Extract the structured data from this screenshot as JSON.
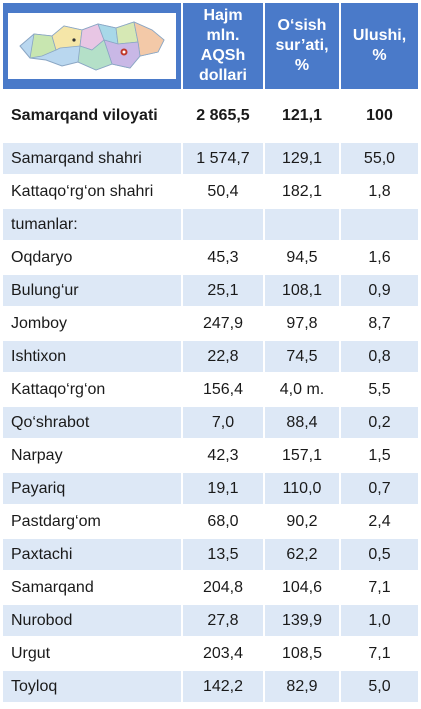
{
  "header": {
    "col_volume": "Hajm mln. AQSh dollari",
    "col_growth": "O‘sish sur’ati, %",
    "col_share": "Ulushi, %",
    "map_icon": "region-map-icon"
  },
  "rows": [
    {
      "name": "Samarqand viloyati",
      "volume": "2 865,5",
      "growth": "121,1",
      "share": "100"
    },
    {
      "name": "Samarqand  shahri",
      "volume": "1 574,7",
      "growth": "129,1",
      "share": "55,0"
    },
    {
      "name": "Kattaqo‘rg‘on shahri",
      "volume": "50,4",
      "growth": "182,1",
      "share": "1,8"
    },
    {
      "name": "tumanlar:",
      "volume": "",
      "growth": "",
      "share": ""
    },
    {
      "name": "Oqdaryo",
      "volume": "45,3",
      "growth": "94,5",
      "share": "1,6"
    },
    {
      "name": "Bulung‘ur",
      "volume": "25,1",
      "growth": "108,1",
      "share": "0,9"
    },
    {
      "name": "Jomboy",
      "volume": "247,9",
      "growth": "97,8",
      "share": "8,7"
    },
    {
      "name": "Ishtixon",
      "volume": "22,8",
      "growth": "74,5",
      "share": "0,8"
    },
    {
      "name": "Kattaqo‘rg‘on",
      "volume": "156,4",
      "growth": "4,0 m.",
      "share": "5,5"
    },
    {
      "name": "Qo‘shrabot",
      "volume": "7,0",
      "growth": "88,4",
      "share": "0,2"
    },
    {
      "name": "Narpay",
      "volume": "42,3",
      "growth": "157,1",
      "share": "1,5"
    },
    {
      "name": "Payariq",
      "volume": "19,1",
      "growth": "110,0",
      "share": "0,7"
    },
    {
      "name": "Pastdarg‘om",
      "volume": "68,0",
      "growth": "90,2",
      "share": "2,4"
    },
    {
      "name": "Paxtachi",
      "volume": "13,5",
      "growth": "62,2",
      "share": "0,5"
    },
    {
      "name": "Samarqand",
      "volume": "204,8",
      "growth": "104,6",
      "share": "7,1"
    },
    {
      "name": "Nurobod",
      "volume": "27,8",
      "growth": "139,9",
      "share": "1,0"
    },
    {
      "name": "Urgut",
      "volume": "203,4",
      "growth": "108,5",
      "share": "7,1"
    },
    {
      "name": "Toyloq",
      "volume": "142,2",
      "growth": "82,9",
      "share": "5,0"
    }
  ]
}
